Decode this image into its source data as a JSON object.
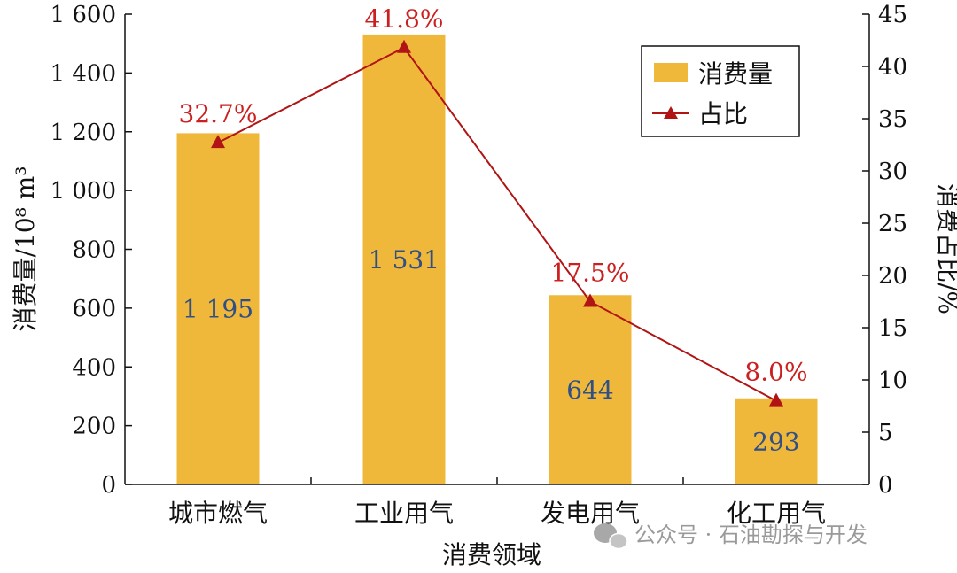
{
  "chart_data": {
    "type": "bar",
    "categories": [
      "城市燃气",
      "工业用气",
      "发电用气",
      "化工用气"
    ],
    "series": [
      {
        "name": "消费量",
        "values": [
          1195,
          1531,
          644,
          293
        ],
        "labels": [
          "1 195",
          "1 531",
          "644",
          "293"
        ],
        "color": "#f0b83a",
        "axis": "left"
      },
      {
        "name": "占比",
        "type": "line",
        "values": [
          32.7,
          41.8,
          17.5,
          8.0
        ],
        "labels": [
          "32.7%",
          "41.8%",
          "17.5%",
          "8.0%"
        ],
        "color": "#b01414",
        "marker": "triangle",
        "axis": "right"
      }
    ],
    "xlabel": "消费领域",
    "ylabel": "消费量/10⁸ m³",
    "ylabel_right": "消费占比/%",
    "ylim": [
      0,
      1600
    ],
    "yticks": [
      0,
      200,
      400,
      600,
      800,
      1000,
      1200,
      1400,
      1600
    ],
    "ytick_labels": [
      "0",
      "200",
      "400",
      "600",
      "800",
      "1 000",
      "1 200",
      "1 400",
      "1 600"
    ],
    "ylim_right": [
      0,
      45
    ],
    "yticks_right": [
      0,
      5,
      10,
      15,
      20,
      25,
      30,
      35,
      40,
      45
    ],
    "legend": "top-right",
    "grid": false
  },
  "watermark": "公众号 · 石油勘探与开发"
}
